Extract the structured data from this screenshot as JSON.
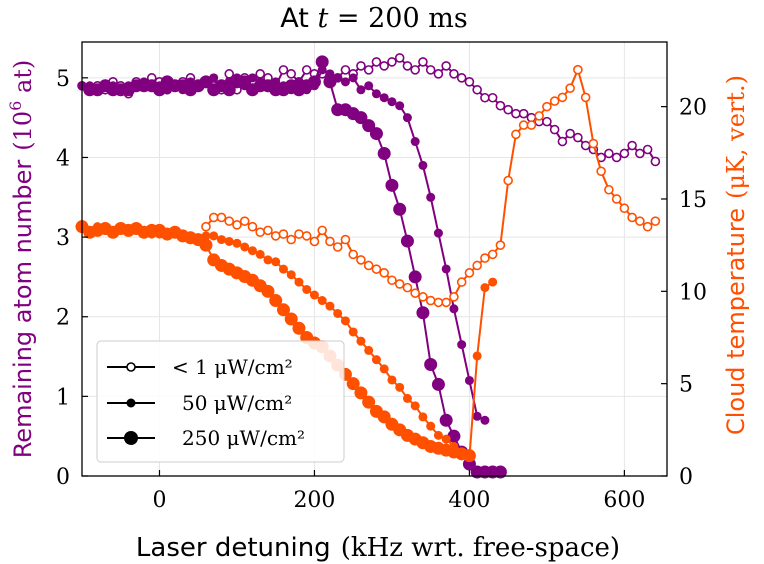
{
  "chart_data": {
    "type": "line",
    "title": "At t = 200 ms",
    "title_parts": {
      "text": "At ",
      "var": "t",
      "eq": " = 200 ms"
    },
    "xlabel": "Laser detuning",
    "xlabel_unit": "(kHz wrt. free-space)",
    "ylabel_left": "Remaining atom number",
    "ylabel_left_unit": "(10",
    "ylabel_left_exp": "6",
    "ylabel_left_tail": " at)",
    "ylabel_right": "Cloud temperature",
    "ylabel_right_unit": "(μK, vert.)",
    "xlim": [
      -100,
      655
    ],
    "ylim_left": [
      0,
      5.45
    ],
    "ylim_right": [
      0,
      23.5
    ],
    "xticks": [
      0,
      200,
      400,
      600
    ],
    "yticks_left": [
      0,
      1,
      2,
      3,
      4,
      5
    ],
    "yticks_right": [
      0,
      5,
      10,
      15,
      20
    ],
    "grid": true,
    "legend_position": "lower-left",
    "colors": {
      "atom": "#800080",
      "temperature": "#ff5000"
    },
    "legend": [
      {
        "label": "< 1 μW/cm²",
        "marker": "open-small"
      },
      {
        "label": "50 μW/cm²",
        "marker": "filled-small"
      },
      {
        "label": "250 μW/cm²",
        "marker": "filled-large"
      }
    ],
    "series": [
      {
        "name": "< 1 μW/cm²",
        "quantity": "atom_number",
        "axis": "left",
        "marker": "open-small",
        "x": [
          -100,
          -90,
          -80,
          -70,
          -60,
          -50,
          -40,
          -30,
          -20,
          -10,
          0,
          10,
          20,
          30,
          40,
          50,
          60,
          70,
          80,
          90,
          100,
          110,
          120,
          130,
          140,
          150,
          160,
          170,
          180,
          190,
          200,
          210,
          220,
          230,
          240,
          250,
          260,
          270,
          280,
          290,
          300,
          310,
          320,
          330,
          340,
          350,
          360,
          370,
          380,
          390,
          400,
          410,
          420,
          430,
          440,
          450,
          460,
          470,
          480,
          490,
          500,
          510,
          520,
          530,
          540,
          550,
          560,
          570,
          580,
          590,
          600,
          610,
          620,
          630,
          640
        ],
        "y": [
          4.9,
          4.85,
          4.9,
          4.85,
          4.95,
          4.9,
          4.8,
          4.95,
          4.9,
          5.0,
          4.95,
          4.85,
          4.9,
          4.95,
          5.0,
          4.9,
          4.95,
          4.9,
          4.85,
          5.05,
          4.85,
          5.0,
          4.95,
          5.05,
          5.0,
          4.9,
          5.1,
          5.05,
          4.95,
          5.1,
          5.05,
          5.05,
          4.95,
          5.0,
          5.1,
          5.05,
          5.15,
          5.1,
          5.2,
          5.15,
          5.2,
          5.25,
          5.15,
          5.1,
          5.2,
          5.1,
          5.05,
          5.15,
          5.05,
          5.0,
          4.95,
          4.85,
          4.75,
          4.75,
          4.65,
          4.6,
          4.55,
          4.55,
          4.5,
          4.45,
          4.45,
          4.35,
          4.2,
          4.3,
          4.25,
          4.15,
          4.1,
          4.0,
          4.05,
          4.0,
          4.05,
          4.15,
          4.05,
          4.1,
          3.95
        ]
      },
      {
        "name": "50 μW/cm²",
        "quantity": "atom_number",
        "axis": "left",
        "marker": "filled-small",
        "x": [
          -100,
          -90,
          -80,
          -70,
          -60,
          -50,
          -40,
          -30,
          -20,
          -10,
          0,
          10,
          20,
          30,
          40,
          50,
          60,
          70,
          80,
          90,
          100,
          110,
          120,
          130,
          140,
          150,
          160,
          170,
          180,
          190,
          200,
          210,
          220,
          230,
          240,
          250,
          260,
          270,
          280,
          290,
          300,
          310,
          320,
          330,
          340,
          350,
          360,
          370,
          380,
          390,
          400,
          410,
          420
        ],
        "y": [
          4.9,
          4.9,
          4.85,
          4.9,
          4.9,
          4.85,
          4.9,
          4.9,
          4.95,
          4.9,
          4.9,
          4.85,
          4.9,
          4.85,
          4.95,
          4.9,
          4.95,
          5.0,
          4.9,
          4.95,
          5.0,
          4.9,
          5.0,
          4.95,
          4.9,
          4.95,
          4.9,
          4.85,
          4.95,
          4.85,
          4.9,
          5.1,
          5.05,
          5.0,
          4.95,
          5.0,
          4.85,
          4.9,
          4.8,
          4.75,
          4.7,
          4.65,
          4.5,
          4.2,
          3.9,
          3.5,
          3.05,
          2.6,
          2.1,
          1.65,
          1.2,
          0.75,
          0.7
        ]
      },
      {
        "name": "250 μW/cm²",
        "quantity": "atom_number",
        "axis": "left",
        "marker": "filled-large",
        "x": [
          -90,
          -80,
          -70,
          -60,
          -50,
          -40,
          -30,
          -20,
          -10,
          0,
          10,
          20,
          30,
          40,
          50,
          60,
          70,
          80,
          90,
          100,
          110,
          120,
          130,
          140,
          150,
          160,
          170,
          180,
          190,
          200,
          210,
          220,
          230,
          240,
          250,
          260,
          270,
          280,
          290,
          300,
          310,
          320,
          330,
          340,
          350,
          360,
          370,
          380,
          390,
          400,
          410,
          420,
          430,
          440
        ],
        "y": [
          4.85,
          4.85,
          4.9,
          4.85,
          4.85,
          4.85,
          4.9,
          4.9,
          4.9,
          4.85,
          4.95,
          4.9,
          4.9,
          4.85,
          4.9,
          4.95,
          4.85,
          4.9,
          4.85,
          4.95,
          4.95,
          4.85,
          4.9,
          4.9,
          4.85,
          4.85,
          4.9,
          4.85,
          4.9,
          4.95,
          5.2,
          4.95,
          4.6,
          4.6,
          4.55,
          4.5,
          4.4,
          4.3,
          4.05,
          3.65,
          3.35,
          2.95,
          2.5,
          2.05,
          1.4,
          1.15,
          0.7,
          0.5,
          0.3,
          0.15,
          0.05,
          0.05,
          0.05,
          0.05
        ]
      },
      {
        "name": "< 1 μW/cm²",
        "quantity": "temperature",
        "axis": "right",
        "marker": "open-small",
        "x": [
          60,
          70,
          80,
          90,
          100,
          110,
          120,
          130,
          140,
          150,
          160,
          170,
          180,
          190,
          200,
          210,
          220,
          230,
          240,
          250,
          260,
          270,
          280,
          290,
          300,
          310,
          320,
          330,
          340,
          350,
          360,
          370,
          380,
          390,
          400,
          410,
          420,
          430,
          440,
          450,
          460,
          470,
          480,
          490,
          500,
          510,
          520,
          530,
          540,
          550,
          560,
          570,
          580,
          590,
          600,
          610,
          620,
          630,
          640
        ],
        "y": [
          13.5,
          14.0,
          14.0,
          13.8,
          13.6,
          13.8,
          13.5,
          13.2,
          13.3,
          13.0,
          13.1,
          12.8,
          13.1,
          13.0,
          12.7,
          13.3,
          12.7,
          12.4,
          12.8,
          12.0,
          11.7,
          11.4,
          11.2,
          11.0,
          10.6,
          10.4,
          10.2,
          9.9,
          9.7,
          9.5,
          9.4,
          9.4,
          9.7,
          10.5,
          11.0,
          11.4,
          11.8,
          12.0,
          12.5,
          16.0,
          18.5,
          19.0,
          19.0,
          19.5,
          20.0,
          20.3,
          20.5,
          21.0,
          22.0,
          20.5,
          18.0,
          16.5,
          15.5,
          15.0,
          14.5,
          14.0,
          13.8,
          13.5,
          13.8
        ]
      },
      {
        "name": "50 μW/cm²",
        "quantity": "temperature",
        "axis": "right",
        "marker": "filled-small",
        "x": [
          -100,
          -90,
          -80,
          -70,
          -60,
          -50,
          -40,
          -30,
          -20,
          -10,
          0,
          10,
          20,
          30,
          40,
          50,
          60,
          70,
          80,
          90,
          100,
          110,
          120,
          130,
          140,
          150,
          160,
          170,
          180,
          190,
          200,
          210,
          220,
          230,
          240,
          250,
          260,
          270,
          280,
          290,
          300,
          310,
          320,
          330,
          340,
          350,
          360,
          370,
          380,
          390,
          400,
          410,
          420,
          430
        ],
        "y": [
          13.4,
          13.3,
          13.5,
          13.3,
          13.2,
          13.4,
          13.4,
          13.3,
          13.2,
          13.1,
          13.1,
          13.2,
          13.2,
          13.1,
          13.0,
          12.9,
          13.0,
          13.0,
          12.8,
          12.7,
          12.6,
          12.4,
          12.2,
          12.0,
          11.7,
          11.6,
          11.2,
          10.9,
          10.5,
          10.1,
          9.8,
          9.5,
          9.2,
          8.8,
          8.4,
          7.8,
          7.3,
          6.8,
          6.3,
          5.8,
          5.2,
          4.8,
          4.2,
          3.8,
          3.2,
          2.7,
          2.2,
          2.0,
          1.6,
          1.3,
          1.0,
          6.5,
          10.2,
          10.5
        ]
      },
      {
        "name": "250 μW/cm²",
        "quantity": "temperature",
        "axis": "right",
        "marker": "filled-large",
        "x": [
          -100,
          -90,
          -80,
          -70,
          -60,
          -50,
          -40,
          -30,
          -20,
          -10,
          0,
          10,
          20,
          30,
          40,
          50,
          60,
          70,
          80,
          90,
          100,
          110,
          120,
          130,
          140,
          150,
          160,
          170,
          180,
          190,
          200,
          210,
          220,
          230,
          240,
          250,
          260,
          270,
          280,
          290,
          300,
          310,
          320,
          330,
          340,
          350,
          360,
          370,
          380,
          390,
          400
        ],
        "y": [
          13.5,
          13.2,
          13.3,
          13.4,
          13.2,
          13.4,
          13.3,
          13.4,
          13.2,
          13.3,
          13.3,
          13.1,
          13.2,
          13.0,
          12.9,
          12.8,
          12.5,
          11.7,
          11.4,
          11.2,
          11.0,
          10.8,
          10.6,
          10.3,
          10.0,
          9.5,
          9.0,
          8.5,
          8.0,
          7.5,
          7.2,
          7.0,
          6.5,
          6.0,
          5.5,
          5.0,
          4.5,
          4.0,
          3.5,
          3.2,
          2.8,
          2.5,
          2.2,
          2.0,
          1.8,
          1.6,
          1.5,
          1.4,
          1.3,
          1.2,
          1.1
        ]
      }
    ]
  }
}
